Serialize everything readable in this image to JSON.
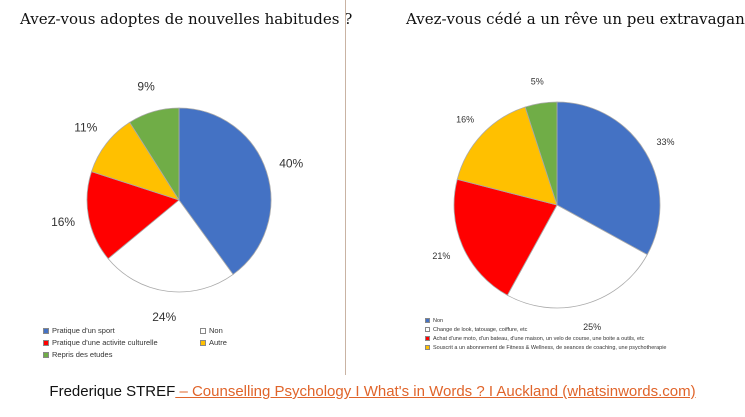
{
  "chart_data": [
    {
      "type": "pie",
      "title": "Avez-vous adoptes de nouvelles habitudes ?",
      "categories": [
        "Pratique d'un sport",
        "Non",
        "Pratique d'une activite culturelle",
        "Autre",
        "Repris des etudes"
      ],
      "values": [
        40,
        24,
        16,
        11,
        9
      ],
      "labels": [
        "40%",
        "24%",
        "16%",
        "11%",
        "9%"
      ],
      "colors": [
        "#4472c4",
        "#ffffff",
        "#ff0000",
        "#ffc000",
        "#70ad47"
      ],
      "legend": "bottom"
    },
    {
      "type": "pie",
      "title": "Avez-vous cédé a un rêve un peu extravagant ?",
      "categories": [
        "Non",
        "Change de look, tatouage, coiffure, etc",
        "Achat d'une moto, d'un bateau, d'une maison, un velo de course, une boite a  outils, etc",
        "Souscrit a  un abonnement de Fitness & Wellness, de seances de coaching, une psychotherapie",
        ""
      ],
      "values": [
        33,
        25,
        21,
        16,
        5
      ],
      "labels": [
        "33%",
        "25%",
        "21%",
        "16%",
        "5%"
      ],
      "colors": [
        "#4472c4",
        "#ffffff",
        "#ff0000",
        "#ffc000",
        "#70ad47"
      ],
      "legend": "bottom"
    }
  ],
  "footer": {
    "author": "Frederique STREF",
    "link": " – Counselling Psychology I What's in Words ? I Auckland (whatsinwords.com)"
  }
}
